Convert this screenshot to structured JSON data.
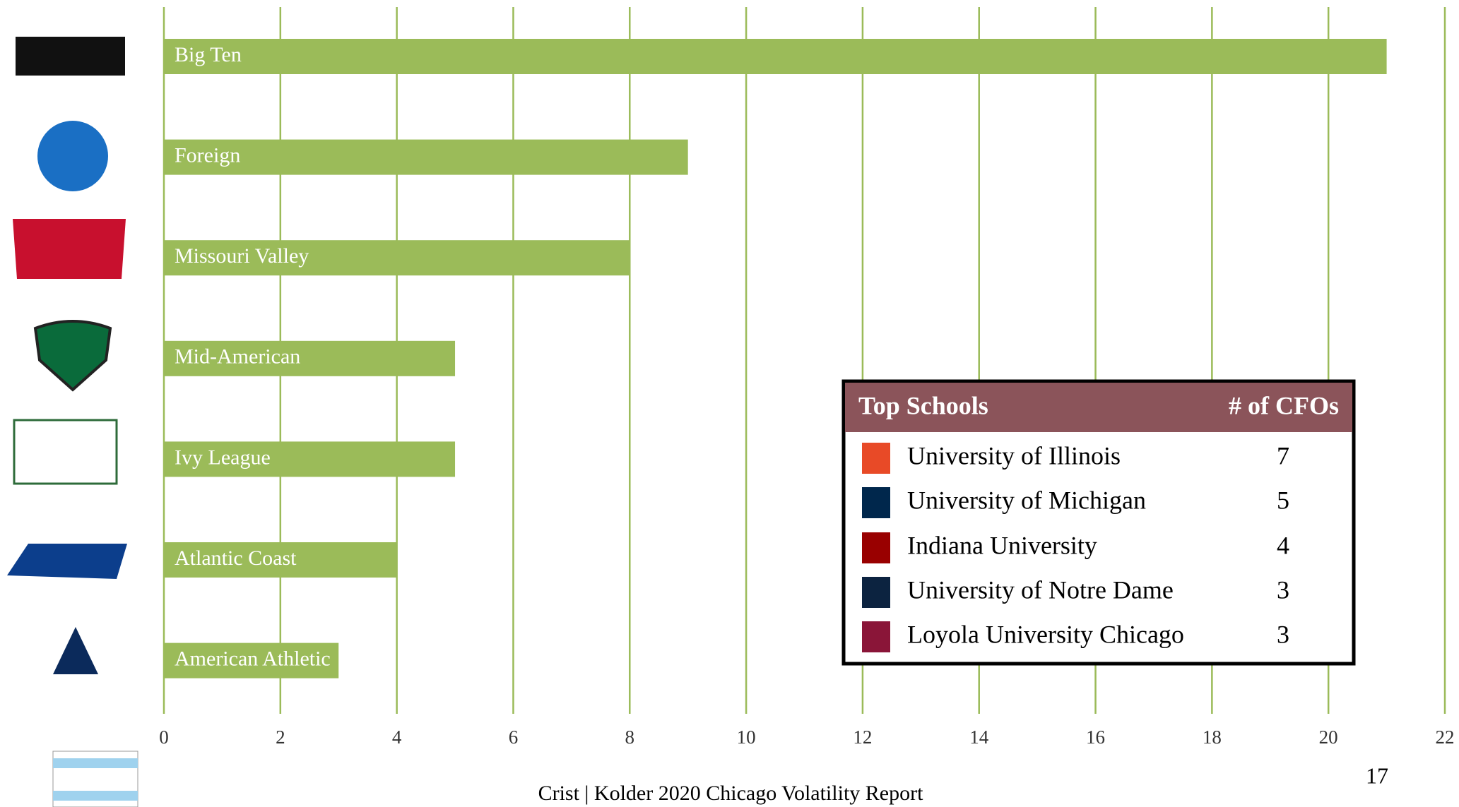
{
  "chart_data": {
    "type": "bar",
    "orientation": "horizontal",
    "categories": [
      "Big Ten",
      "Foreign",
      "Missouri Valley",
      "Mid-American",
      "Ivy League",
      "Atlantic Coast",
      "American Athletic"
    ],
    "values": [
      21,
      9,
      8,
      5,
      5,
      4,
      3
    ],
    "color": "#9bbb59",
    "xlim": [
      0,
      22
    ],
    "xticks": [
      0,
      2,
      4,
      6,
      8,
      10,
      12,
      14,
      16,
      18,
      20,
      22
    ],
    "grid": true
  },
  "table": {
    "header": [
      "Top Schools",
      "# of CFOs"
    ],
    "rows": [
      [
        "University of Illinois",
        "7"
      ],
      [
        "University of Michigan",
        "5"
      ],
      [
        "Indiana University",
        "4"
      ],
      [
        "University of Notre Dame",
        "3"
      ],
      [
        "Loyola University Chicago",
        "3"
      ]
    ]
  },
  "footer": {
    "text": "Crist | Kolder 2020 Chicago Volatility Report",
    "page": "17"
  }
}
